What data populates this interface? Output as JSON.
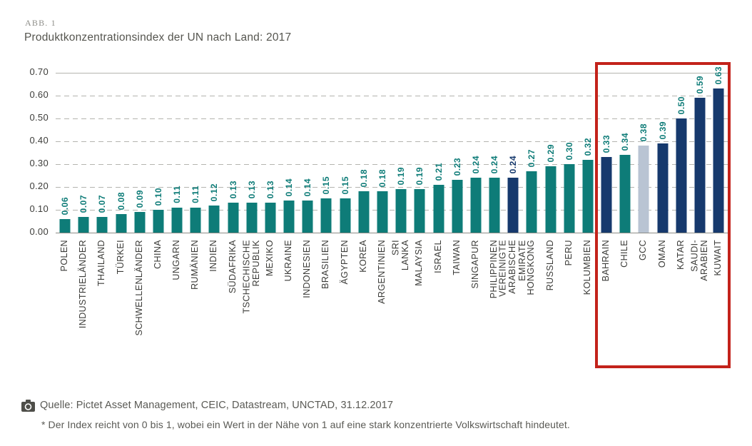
{
  "figure": {
    "label": "ABB. 1",
    "title": "Produktkonzentrationsindex der UN nach Land: 2017"
  },
  "chart_data": {
    "type": "bar",
    "title": "Produktkonzentrationsindex der UN nach Land: 2017",
    "xlabel": "",
    "ylabel": "",
    "ylim": [
      0,
      0.7
    ],
    "y_ticks": [
      "0.70",
      "0.60",
      "0.50",
      "0.40",
      "0.30",
      "0.20",
      "0.10",
      "0.00"
    ],
    "grid": "horizontal-dashed",
    "legend": "none",
    "palette": {
      "teal": "#0E7C78",
      "navy": "#16396D",
      "lightblue": "#B9C4D3"
    },
    "value_label_color": "#0E7C78",
    "highlight_box": {
      "color": "#C3231B",
      "covers": [
        "BAHRAIN",
        "CHILE",
        "GCC",
        "OMAN",
        "KATAR",
        "SAUDI-ARABIEN",
        "KUWAIT"
      ]
    },
    "bars": [
      {
        "category": "POLEN",
        "value": 0.06,
        "display": "0.06",
        "color": "teal"
      },
      {
        "category": "INDUSTRIELÄNDER",
        "value": 0.07,
        "display": "0.07",
        "color": "teal"
      },
      {
        "category": "THAILAND",
        "value": 0.07,
        "display": "0.07",
        "color": "teal"
      },
      {
        "category": "TÜRKEI",
        "value": 0.08,
        "display": "0.08",
        "color": "teal"
      },
      {
        "category": "SCHWELLENLÄNDER",
        "value": 0.09,
        "display": "0.09",
        "color": "teal"
      },
      {
        "category": "CHINA",
        "value": 0.1,
        "display": "0.10",
        "color": "teal"
      },
      {
        "category": "UNGARN",
        "value": 0.11,
        "display": "0.11",
        "color": "teal"
      },
      {
        "category": "RUMÄNIEN",
        "value": 0.11,
        "display": "0.11",
        "color": "teal"
      },
      {
        "category": "INDIEN",
        "value": 0.12,
        "display": "0.12",
        "color": "teal"
      },
      {
        "category": "SÜDAFRIKA",
        "value": 0.13,
        "display": "0.13",
        "color": "teal"
      },
      {
        "category": "TSCHECHISCHE REPUBLIK",
        "value": 0.13,
        "display": "0.13",
        "color": "teal"
      },
      {
        "category": "MEXIKO",
        "value": 0.13,
        "display": "0.13",
        "color": "teal"
      },
      {
        "category": "UKRAINE",
        "value": 0.14,
        "display": "0.14",
        "color": "teal"
      },
      {
        "category": "INDONESIEN",
        "value": 0.14,
        "display": "0.14",
        "color": "teal"
      },
      {
        "category": "BRASILIEN",
        "value": 0.15,
        "display": "0.15",
        "color": "teal"
      },
      {
        "category": "ÄGYPTEN",
        "value": 0.15,
        "display": "0.15",
        "color": "teal"
      },
      {
        "category": "KOREA",
        "value": 0.18,
        "display": "0.18",
        "color": "teal"
      },
      {
        "category": "ARGENTINIEN",
        "value": 0.18,
        "display": "0.18",
        "color": "teal"
      },
      {
        "category": "SRI LANKA",
        "value": 0.19,
        "display": "0.19",
        "color": "teal"
      },
      {
        "category": "MALAYSIA",
        "value": 0.19,
        "display": "0.19",
        "color": "teal"
      },
      {
        "category": "ISRAEL",
        "value": 0.21,
        "display": "0.21",
        "color": "teal"
      },
      {
        "category": "TAIWAN",
        "value": 0.23,
        "display": "0.23",
        "color": "teal"
      },
      {
        "category": "SINGAPUR",
        "value": 0.24,
        "display": "0.24",
        "color": "teal"
      },
      {
        "category": "PHILIPPINEN",
        "value": 0.24,
        "display": "0.24",
        "color": "teal"
      },
      {
        "category": "VEREINIGTE ARABISCHE\nEMIRATE",
        "value": 0.24,
        "display": "0.24",
        "color": "navy",
        "label_color": "navy"
      },
      {
        "category": "HONGKONG",
        "value": 0.27,
        "display": "0.27",
        "color": "teal"
      },
      {
        "category": "RUSSLAND",
        "value": 0.29,
        "display": "0.29",
        "color": "teal"
      },
      {
        "category": "PERU",
        "value": 0.3,
        "display": "0.30",
        "color": "teal"
      },
      {
        "category": "KOLUMBIEN",
        "value": 0.32,
        "display": "0.32",
        "color": "teal"
      },
      {
        "category": "BAHRAIN",
        "value": 0.33,
        "display": "0.33",
        "color": "navy"
      },
      {
        "category": "CHILE",
        "value": 0.34,
        "display": "0.34",
        "color": "teal"
      },
      {
        "category": "GCC",
        "value": 0.38,
        "display": "0.38",
        "color": "lightblue"
      },
      {
        "category": "OMAN",
        "value": 0.39,
        "display": "0.39",
        "color": "navy"
      },
      {
        "category": "KATAR",
        "value": 0.5,
        "display": "0.50",
        "color": "navy"
      },
      {
        "category": "SAUDI-ARABIEN",
        "value": 0.59,
        "display": "0.59",
        "color": "navy"
      },
      {
        "category": "KUWAIT",
        "value": 0.63,
        "display": "0.63",
        "color": "navy"
      }
    ]
  },
  "footer": {
    "icon": "camera-icon",
    "source": "Quelle: Pictet Asset Management, CEIC, Datastream, UNCTAD, 31.12.2017",
    "footnote": "* Der Index reicht von 0 bis 1, wobei ein Wert in der Nähe von 1 auf eine stark konzentrierte Volkswirtschaft hindeutet."
  }
}
